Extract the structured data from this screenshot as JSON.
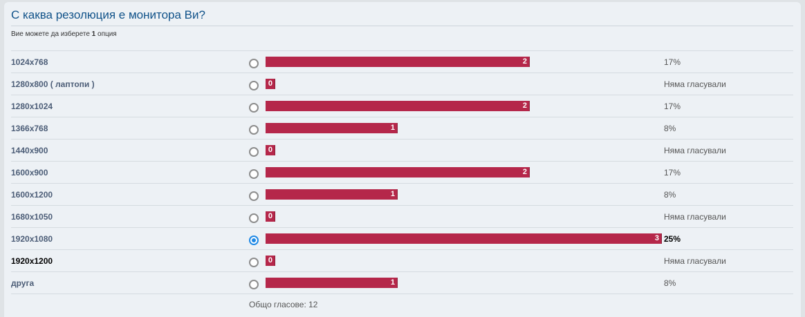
{
  "poll": {
    "question": "С каква резолюция е монитора Ви?",
    "info_prefix": "Вие можете да изберете",
    "info_count": "1",
    "info_suffix": "опция",
    "max_votes": 3,
    "options": [
      {
        "label": "1024x768",
        "votes": "2",
        "value": 2,
        "percent": "17%",
        "checked": false
      },
      {
        "label": "1280x800 ( лаптопи )",
        "votes": "0",
        "value": 0,
        "percent": "Няма гласували",
        "checked": false
      },
      {
        "label": "1280x1024",
        "votes": "2",
        "value": 2,
        "percent": "17%",
        "checked": false
      },
      {
        "label": "1366x768",
        "votes": "1",
        "value": 1,
        "percent": "8%",
        "checked": false
      },
      {
        "label": "1440x900",
        "votes": "0",
        "value": 0,
        "percent": "Няма гласували",
        "checked": false
      },
      {
        "label": "1600x900",
        "votes": "2",
        "value": 2,
        "percent": "17%",
        "checked": false
      },
      {
        "label": "1600x1200",
        "votes": "1",
        "value": 1,
        "percent": "8%",
        "checked": false
      },
      {
        "label": "1680x1050",
        "votes": "0",
        "value": 0,
        "percent": "Няма гласували",
        "checked": false
      },
      {
        "label": "1920x1080",
        "votes": "3",
        "value": 3,
        "percent": "25%",
        "checked": true
      },
      {
        "label": "1920x1200",
        "votes": "0",
        "value": 0,
        "percent": "Няма гласували",
        "checked": false
      },
      {
        "label": "друга",
        "votes": "1",
        "value": 1,
        "percent": "8%",
        "checked": false
      }
    ],
    "total": "Общо гласове: 12"
  },
  "colors": {
    "bar": "#b5274a",
    "title": "#105289",
    "radio_checked": "#1e88e5"
  }
}
